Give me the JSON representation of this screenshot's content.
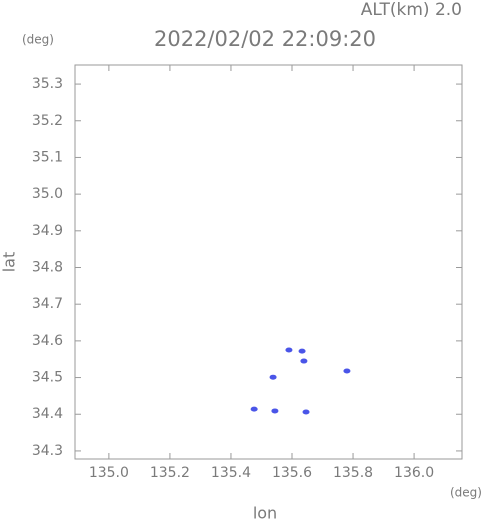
{
  "chart_data": {
    "type": "scatter",
    "title": "2022/02/02 22:09:20",
    "altitude_label": "ALT(km) 2.0",
    "y_unit": "(deg)",
    "x_unit": "(deg)",
    "x_label": "lon",
    "y_label": "lat",
    "xlim": [
      134.889,
      136.157
    ],
    "ylim": [
      34.278,
      35.352
    ],
    "xticks": [
      {
        "value": 135,
        "label": "135.0"
      },
      135.2,
      135.4,
      135.6,
      135.8,
      {
        "value": 136,
        "label": "136.0"
      }
    ],
    "yticks": [
      34.3,
      34.4,
      34.5,
      34.6,
      34.7,
      34.8,
      34.9,
      {
        "value": 35,
        "label": "35.0"
      },
      35.1,
      35.2,
      35.3
    ],
    "color": "#4a55e8",
    "x": [
      135.476,
      135.544,
      135.646,
      135.538,
      135.78,
      135.59,
      135.633,
      135.639
    ],
    "values": [
      34.414,
      34.409,
      34.406,
      34.501,
      34.518,
      34.575,
      34.572,
      34.545
    ]
  }
}
